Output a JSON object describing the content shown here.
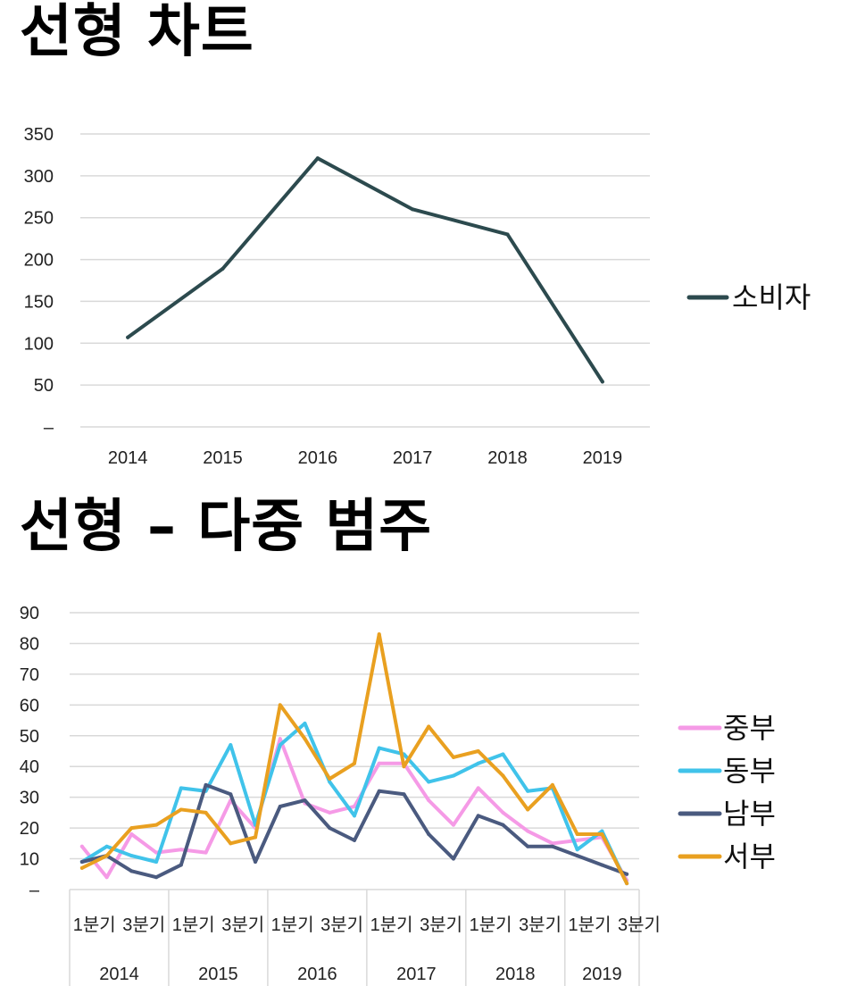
{
  "headings": {
    "chart1": "선형 차트",
    "chart2": "선형 – 다중 범주"
  },
  "chart_data": [
    {
      "type": "line",
      "title": "",
      "xlabel": "",
      "ylabel": "",
      "ylim": [
        0,
        350
      ],
      "ytick_labels": [
        "–",
        "50",
        "100",
        "150",
        "200",
        "250",
        "300",
        "350"
      ],
      "grid": true,
      "legend_position": "right",
      "categories": [
        "2014",
        "2015",
        "2016",
        "2017",
        "2018",
        "2019"
      ],
      "series": [
        {
          "name": "소비자",
          "color": "#2c4a4e",
          "values": [
            107,
            189,
            321,
            260,
            230,
            54
          ]
        }
      ]
    },
    {
      "type": "line",
      "title": "",
      "xlabel": "",
      "ylabel": "",
      "ylim": [
        0,
        90
      ],
      "ytick_labels": [
        "–",
        "10",
        "20",
        "30",
        "40",
        "50",
        "60",
        "70",
        "80",
        "90"
      ],
      "grid": true,
      "legend_position": "right",
      "quarter_labels": [
        "1분기",
        "3분기"
      ],
      "groups": [
        {
          "label": "2014",
          "quarters": 4
        },
        {
          "label": "2015",
          "quarters": 4
        },
        {
          "label": "2016",
          "quarters": 4
        },
        {
          "label": "2017",
          "quarters": 4
        },
        {
          "label": "2018",
          "quarters": 4
        },
        {
          "label": "2019",
          "quarters": 3
        }
      ],
      "series": [
        {
          "name": "중부",
          "color": "#f59ae6",
          "values": [
            14,
            4,
            18,
            12,
            13,
            12,
            29,
            20,
            49,
            28,
            25,
            27,
            41,
            41,
            29,
            21,
            33,
            25,
            19,
            15,
            16,
            17,
            3
          ]
        },
        {
          "name": "동부",
          "color": "#40c3ea",
          "values": [
            9,
            14,
            11,
            9,
            33,
            32,
            47,
            21,
            47,
            54,
            35,
            24,
            46,
            44,
            35,
            37,
            41,
            44,
            32,
            33,
            13,
            19,
            2
          ]
        },
        {
          "name": "남부",
          "color": "#4a5a7f",
          "values": [
            9,
            11,
            6,
            4,
            8,
            34,
            31,
            9,
            27,
            29,
            20,
            16,
            32,
            31,
            18,
            10,
            24,
            21,
            14,
            14,
            11,
            8,
            5
          ]
        },
        {
          "name": "서부",
          "color": "#e9a020",
          "values": [
            7,
            11,
            20,
            21,
            26,
            25,
            15,
            17,
            60,
            49,
            36,
            41,
            83,
            40,
            53,
            43,
            45,
            37,
            26,
            34,
            18,
            18,
            2
          ]
        }
      ]
    }
  ]
}
